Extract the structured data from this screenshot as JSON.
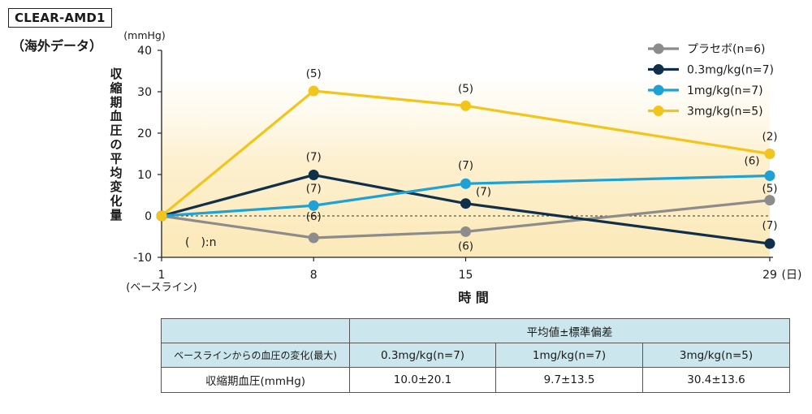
{
  "badge": "CLEAR-AMD1",
  "subtitle": "（海外データ）",
  "chart_data": {
    "type": "line",
    "x": [
      1,
      8,
      15,
      29
    ],
    "x_tick_labels": [
      "1",
      "8",
      "15",
      "29"
    ],
    "x_first_sublabel": "(ベースライン)",
    "x_unit": "(日)",
    "xlabel": "時 間",
    "ylabel": "収縮期血圧の平均変化量",
    "y_unit": "(mmHg)",
    "ylim": [
      -10,
      40
    ],
    "y_ticks": [
      -10,
      0,
      10,
      20,
      30,
      40
    ],
    "n_note": "(　):n",
    "series": [
      {
        "name": "プラセボ(n=6)",
        "color": "#8c8c8c",
        "values": [
          0,
          -5.3,
          -3.8,
          3.8
        ],
        "n_labels": [
          "",
          "(6)",
          "(6)",
          "(5)"
        ]
      },
      {
        "name": "0.3mg/kg(n=7)",
        "color": "#0f2f4a",
        "values": [
          0,
          9.9,
          3.0,
          -6.7
        ],
        "n_labels": [
          "",
          "(7)",
          "(7)",
          "(7)"
        ]
      },
      {
        "name": "1mg/kg(n=7)",
        "color": "#1ea2d6",
        "values": [
          0,
          2.5,
          7.8,
          9.7
        ],
        "n_labels": [
          "",
          "(7)",
          "(7)",
          "(6)"
        ]
      },
      {
        "name": "3mg/kg(n=5)",
        "color": "#f2c51c",
        "values": [
          0,
          30.2,
          26.6,
          15.0
        ],
        "n_labels": [
          "",
          "(5)",
          "(5)",
          "(2)"
        ]
      }
    ],
    "legend_position": "top-right",
    "background": "yellow gradient band"
  },
  "table": {
    "header_group": "平均値±標準偏差",
    "row_header": "ベースラインからの血圧の変化(最大)",
    "columns": [
      "0.3mg/kg(n=7)",
      "1mg/kg(n=7)",
      "3mg/kg(n=5)"
    ],
    "row_label": "収縮期血圧(mmHg)",
    "values": [
      "10.0±20.1",
      "9.7±13.5",
      "30.4±13.6"
    ]
  }
}
